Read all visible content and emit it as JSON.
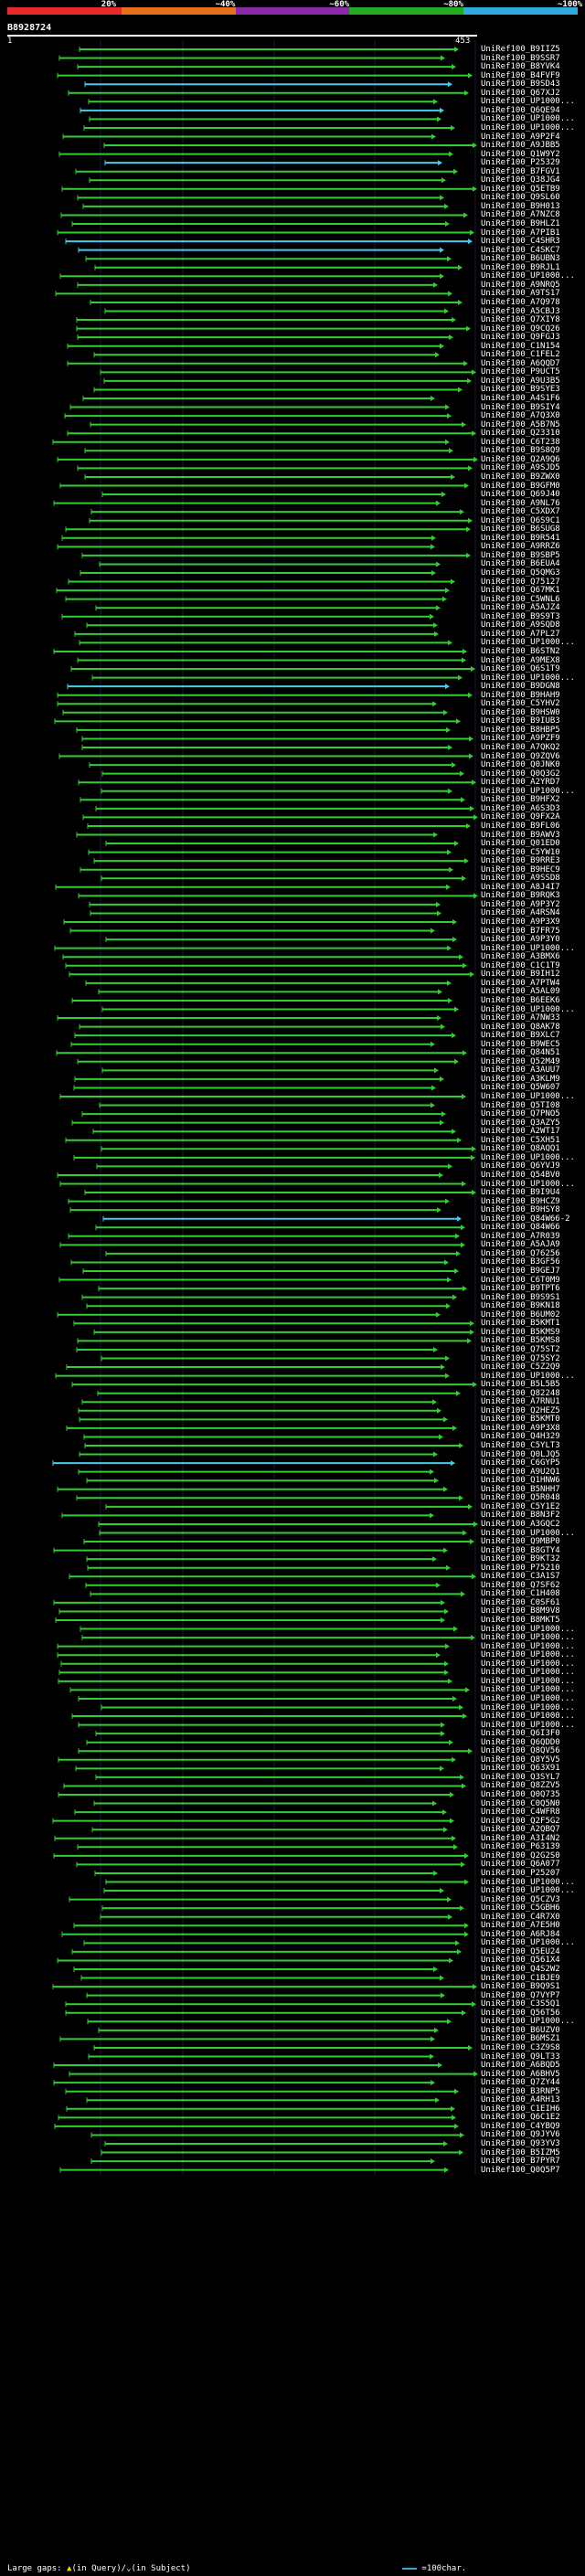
{
  "legend": {
    "percent_labels": [
      "20%",
      "~40%",
      "~60%",
      "~80%",
      "~100%"
    ],
    "colors": [
      "#e8282a",
      "#e8701a",
      "#8a2aa8",
      "#22aa22",
      "#33aadd"
    ]
  },
  "query": {
    "id": "B8928724",
    "start": "1",
    "end": "453"
  },
  "hits": [
    {
      "id": "UniRef100_B9IIZ5",
      "color": "#33cc33"
    },
    {
      "id": "UniRef100_B9SSR7",
      "color": "#33cc33"
    },
    {
      "id": "UniRef100_B8YVK4",
      "color": "#33cc33"
    },
    {
      "id": "UniRef100_B4FVF9",
      "color": "#33cc33"
    },
    {
      "id": "UniRef100_B9SD43",
      "color": "#44ccee"
    },
    {
      "id": "UniRef100_Q67XJ2",
      "color": "#33cc33"
    },
    {
      "id": "UniRef100_UP1000...",
      "color": "#33cc33"
    },
    {
      "id": "UniRef100_Q6QE94",
      "color": "#44ccee"
    },
    {
      "id": "UniRef100_UP1000...",
      "color": "#33cc33"
    },
    {
      "id": "UniRef100_UP1000...",
      "color": "#33cc33"
    },
    {
      "id": "UniRef100_A9P2F4",
      "color": "#33cc33"
    },
    {
      "id": "UniRef100_A9JBB5",
      "color": "#33cc33"
    },
    {
      "id": "UniRef100_Q1W9Y2",
      "color": "#33cc33"
    },
    {
      "id": "UniRef100_P25329",
      "color": "#44ccee"
    },
    {
      "id": "UniRef100_B7FGV1",
      "color": "#33cc33"
    },
    {
      "id": "UniRef100_Q38JG4",
      "color": "#33cc33"
    },
    {
      "id": "UniRef100_Q5ETB9",
      "color": "#33cc33"
    },
    {
      "id": "UniRef100_Q9SL60",
      "color": "#33cc33"
    },
    {
      "id": "UniRef100_B9H013",
      "color": "#33cc33"
    },
    {
      "id": "UniRef100_A7NZC8",
      "color": "#33cc33"
    },
    {
      "id": "UniRef100_B9HLZ1",
      "color": "#33cc33"
    },
    {
      "id": "UniRef100_A7PIB1",
      "color": "#33cc33"
    },
    {
      "id": "UniRef100_C4SHR3",
      "color": "#44ccee"
    },
    {
      "id": "UniRef100_C4SKC7",
      "color": "#44ccee"
    },
    {
      "id": "UniRef100_B6UBN3",
      "color": "#33cc33"
    },
    {
      "id": "UniRef100_B9RJL1",
      "color": "#33cc33"
    },
    {
      "id": "UniRef100_UP1000...",
      "color": "#33cc33"
    },
    {
      "id": "UniRef100_A9NRQ5",
      "color": "#33cc33"
    },
    {
      "id": "UniRef100_A9TS17",
      "color": "#33cc33"
    },
    {
      "id": "UniRef100_A7Q978",
      "color": "#33cc33"
    },
    {
      "id": "UniRef100_A5CBJ3",
      "color": "#33cc33"
    },
    {
      "id": "UniRef100_Q7XIY8",
      "color": "#33cc33"
    },
    {
      "id": "UniRef100_Q9CQ26",
      "color": "#33cc33"
    },
    {
      "id": "UniRef100_Q9FGJ3",
      "color": "#33cc33"
    },
    {
      "id": "UniRef100_C1N154",
      "color": "#33cc33"
    },
    {
      "id": "UniRef100_C1FEL2",
      "color": "#33cc33"
    },
    {
      "id": "UniRef100_A6QQD7",
      "color": "#33cc33"
    },
    {
      "id": "UniRef100_P9UCT5",
      "color": "#33cc33"
    },
    {
      "id": "UniRef100_A9U3B5",
      "color": "#33cc33"
    },
    {
      "id": "UniRef100_B9SYE3",
      "color": "#33cc33"
    },
    {
      "id": "UniRef100_A4S1F6",
      "color": "#33cc33"
    },
    {
      "id": "UniRef100_B9SIY4",
      "color": "#33cc33"
    },
    {
      "id": "UniRef100_A7Q3X0",
      "color": "#33cc33"
    },
    {
      "id": "UniRef100_A5B7N5",
      "color": "#33cc33"
    },
    {
      "id": "UniRef100_Q23310",
      "color": "#33cc33"
    },
    {
      "id": "UniRef100_C6T238",
      "color": "#33cc33"
    },
    {
      "id": "UniRef100_B9S8Q9",
      "color": "#33cc33"
    },
    {
      "id": "UniRef100_Q2A9Q6",
      "color": "#33cc33"
    },
    {
      "id": "UniRef100_A9SJD5",
      "color": "#33cc33"
    },
    {
      "id": "UniRef100_B9ZWX0",
      "color": "#33cc33"
    },
    {
      "id": "UniRef100_B9GFM0",
      "color": "#33cc33"
    },
    {
      "id": "UniRef100_Q69J40",
      "color": "#33cc33"
    },
    {
      "id": "UniRef100_A9NL76",
      "color": "#33cc33"
    },
    {
      "id": "UniRef100_C5XDX7",
      "color": "#33cc33"
    },
    {
      "id": "UniRef100_Q6S9C1",
      "color": "#33cc33"
    },
    {
      "id": "UniRef100_B6SUG8",
      "color": "#33cc33"
    },
    {
      "id": "UniRef100_B9R541",
      "color": "#33cc33"
    },
    {
      "id": "UniRef100_A9RRZ6",
      "color": "#33cc33"
    },
    {
      "id": "UniRef100_B9SBP5",
      "color": "#33cc33"
    },
    {
      "id": "UniRef100_B6EUA4",
      "color": "#33cc33"
    },
    {
      "id": "UniRef100_Q5QMG3",
      "color": "#33cc33"
    },
    {
      "id": "UniRef100_Q75127",
      "color": "#33cc33"
    },
    {
      "id": "UniRef100_Q67MK1",
      "color": "#33cc33"
    },
    {
      "id": "UniRef100_C5WNL6",
      "color": "#33cc33"
    },
    {
      "id": "UniRef100_A5AJZ4",
      "color": "#33cc33"
    },
    {
      "id": "UniRef100_B9S9T3",
      "color": "#33cc33"
    },
    {
      "id": "UniRef100_A9SQD8",
      "color": "#33cc33"
    },
    {
      "id": "UniRef100_A7PL27",
      "color": "#33cc33"
    },
    {
      "id": "UniRef100_UP1000...",
      "color": "#33cc33"
    },
    {
      "id": "UniRef100_B6STN2",
      "color": "#33cc33"
    },
    {
      "id": "UniRef100_A9MEX8",
      "color": "#33cc33"
    },
    {
      "id": "UniRef100_Q6S1T9",
      "color": "#33cc33"
    },
    {
      "id": "UniRef100_UP1000...",
      "color": "#33cc33"
    },
    {
      "id": "UniRef100_B9DGN8",
      "color": "#44ccee"
    },
    {
      "id": "UniRef100_B9HAH9",
      "color": "#33cc33"
    },
    {
      "id": "UniRef100_C5YHV2",
      "color": "#33cc33"
    },
    {
      "id": "UniRef100_B9HSW0",
      "color": "#33cc33"
    },
    {
      "id": "UniRef100_B9IUB3",
      "color": "#33cc33"
    },
    {
      "id": "UniRef100_B8HBP5",
      "color": "#33cc33"
    },
    {
      "id": "UniRef100_A9PZF9",
      "color": "#33cc33"
    },
    {
      "id": "UniRef100_A7QKQ2",
      "color": "#33cc33"
    },
    {
      "id": "UniRef100_Q9ZQV6",
      "color": "#33cc33"
    },
    {
      "id": "UniRef100_Q0JNK0",
      "color": "#33cc33"
    },
    {
      "id": "UniRef100_Q0Q3G2",
      "color": "#33cc33"
    },
    {
      "id": "UniRef100_A2YRD7",
      "color": "#33cc33"
    },
    {
      "id": "UniRef100_UP1000...",
      "color": "#33cc33"
    },
    {
      "id": "UniRef100_B9HFX2",
      "color": "#33cc33"
    },
    {
      "id": "UniRef100_A6S3D3",
      "color": "#33cc33"
    },
    {
      "id": "UniRef100_Q9FX2A",
      "color": "#33cc33"
    },
    {
      "id": "UniRef100_B9FL06",
      "color": "#33cc33"
    },
    {
      "id": "UniRef100_B9AWV3",
      "color": "#33cc33"
    },
    {
      "id": "UniRef100_Q01ED0",
      "color": "#33cc33"
    },
    {
      "id": "UniRef100_C5YW10",
      "color": "#33cc33"
    },
    {
      "id": "UniRef100_B9RRE3",
      "color": "#33cc33"
    },
    {
      "id": "UniRef100_B9HEC9",
      "color": "#33cc33"
    },
    {
      "id": "UniRef100_A9SSD8",
      "color": "#33cc33"
    },
    {
      "id": "UniRef100_A8J4I7",
      "color": "#33cc33"
    },
    {
      "id": "UniRef100_B9RQK3",
      "color": "#33cc33"
    },
    {
      "id": "UniRef100_A9P3Y2",
      "color": "#33cc33"
    },
    {
      "id": "UniRef100_A4RSN4",
      "color": "#33cc33"
    },
    {
      "id": "UniRef100_A9P3X9",
      "color": "#33cc33"
    },
    {
      "id": "UniRef100_B7FR75",
      "color": "#33cc33"
    },
    {
      "id": "UniRef100_A9P3Y0",
      "color": "#33cc33"
    },
    {
      "id": "UniRef100_UP1000...",
      "color": "#33cc33"
    },
    {
      "id": "UniRef100_A3BMX6",
      "color": "#33cc33"
    },
    {
      "id": "UniRef100_C1C1T9",
      "color": "#33cc33"
    },
    {
      "id": "UniRef100_B9IH12",
      "color": "#33cc33"
    },
    {
      "id": "UniRef100_A7PTW4",
      "color": "#33cc33"
    },
    {
      "id": "UniRef100_A5AL09",
      "color": "#33cc33"
    },
    {
      "id": "UniRef100_B6EEK6",
      "color": "#33cc33"
    },
    {
      "id": "UniRef100_UP1000...",
      "color": "#33cc33"
    },
    {
      "id": "UniRef100_A7NW33",
      "color": "#33cc33"
    },
    {
      "id": "UniRef100_Q8AK78",
      "color": "#33cc33"
    },
    {
      "id": "UniRef100_B9XLC7",
      "color": "#33cc33"
    },
    {
      "id": "UniRef100_B9WEC5",
      "color": "#33cc33"
    },
    {
      "id": "UniRef100_Q84N51",
      "color": "#33cc33"
    },
    {
      "id": "UniRef100_Q52M49",
      "color": "#33cc33"
    },
    {
      "id": "UniRef100_A3AUU7",
      "color": "#33cc33"
    },
    {
      "id": "UniRef100_A3KLM9",
      "color": "#33cc33"
    },
    {
      "id": "UniRef100_Q5W607",
      "color": "#33cc33"
    },
    {
      "id": "UniRef100_UP1000...",
      "color": "#33cc33"
    },
    {
      "id": "UniRef100_Q5TI08",
      "color": "#33cc33"
    },
    {
      "id": "UniRef100_Q7PNO5",
      "color": "#33cc33"
    },
    {
      "id": "UniRef100_Q3AZY5",
      "color": "#33cc33"
    },
    {
      "id": "UniRef100_A2WT17",
      "color": "#33cc33"
    },
    {
      "id": "UniRef100_C5XH51",
      "color": "#33cc33"
    },
    {
      "id": "UniRef100_Q8AQQ1",
      "color": "#33cc33"
    },
    {
      "id": "UniRef100_UP1000...",
      "color": "#33cc33"
    },
    {
      "id": "UniRef100_Q6YVJ9",
      "color": "#33cc33"
    },
    {
      "id": "UniRef100_Q54BV0",
      "color": "#33cc33"
    },
    {
      "id": "UniRef100_UP1000...",
      "color": "#33cc33"
    },
    {
      "id": "UniRef100_B9I9U4",
      "color": "#33cc33"
    },
    {
      "id": "UniRef100_B9HCZ9",
      "color": "#33cc33"
    },
    {
      "id": "UniRef100_B9HSY8",
      "color": "#33cc33"
    },
    {
      "id": "UniRef100_Q84W66-2",
      "color": "#44ccee"
    },
    {
      "id": "UniRef100_Q84W66",
      "color": "#33cc33"
    },
    {
      "id": "UniRef100_A7R039",
      "color": "#33cc33"
    },
    {
      "id": "UniRef100_A5AJA9",
      "color": "#33cc33"
    },
    {
      "id": "UniRef100_Q76256",
      "color": "#33cc33"
    },
    {
      "id": "UniRef100_B3GF56",
      "color": "#33cc33"
    },
    {
      "id": "UniRef100_B9GEJ7",
      "color": "#33cc33"
    },
    {
      "id": "UniRef100_C6T0M9",
      "color": "#33cc33"
    },
    {
      "id": "UniRef100_B9TPT6",
      "color": "#33cc33"
    },
    {
      "id": "UniRef100_B9S9S1",
      "color": "#33cc33"
    },
    {
      "id": "UniRef100_B9KN18",
      "color": "#33cc33"
    },
    {
      "id": "UniRef100_B6UM02",
      "color": "#33cc33"
    },
    {
      "id": "UniRef100_B5KMT1",
      "color": "#33cc33"
    },
    {
      "id": "UniRef100_B5KMS9",
      "color": "#33cc33"
    },
    {
      "id": "UniRef100_B5KMS8",
      "color": "#33cc33"
    },
    {
      "id": "UniRef100_Q75ST2",
      "color": "#33cc33"
    },
    {
      "id": "UniRef100_Q75SY2",
      "color": "#33cc33"
    },
    {
      "id": "UniRef100_C5Z2Q9",
      "color": "#33cc33"
    },
    {
      "id": "UniRef100_UP1000...",
      "color": "#33cc33"
    },
    {
      "id": "UniRef100_B5L5B5",
      "color": "#33cc33"
    },
    {
      "id": "UniRef100_Q82248",
      "color": "#33cc33"
    },
    {
      "id": "UniRef100_A7RNU1",
      "color": "#33cc33"
    },
    {
      "id": "UniRef100_Q2HEZ5",
      "color": "#33cc33"
    },
    {
      "id": "UniRef100_B5KMT0",
      "color": "#33cc33"
    },
    {
      "id": "UniRef100_A9P3X8",
      "color": "#33cc33"
    },
    {
      "id": "UniRef100_Q4H329",
      "color": "#33cc33"
    },
    {
      "id": "UniRef100_C5YLT3",
      "color": "#33cc33"
    },
    {
      "id": "UniRef100_Q0LJQ5",
      "color": "#33cc33"
    },
    {
      "id": "UniRef100_C6GYP5",
      "color": "#44ccee"
    },
    {
      "id": "UniRef100_A9U2Q1",
      "color": "#33cc33"
    },
    {
      "id": "UniRef100_Q1HNW6",
      "color": "#33cc33"
    },
    {
      "id": "UniRef100_B5NHH7",
      "color": "#33cc33"
    },
    {
      "id": "UniRef100_Q5R048",
      "color": "#33cc33"
    },
    {
      "id": "UniRef100_C5Y1E2",
      "color": "#33cc33"
    },
    {
      "id": "UniRef100_B8N3F2",
      "color": "#33cc33"
    },
    {
      "id": "UniRef100_A3GQC2",
      "color": "#33cc33"
    },
    {
      "id": "UniRef100_UP1000...",
      "color": "#33cc33"
    },
    {
      "id": "UniRef100_Q9MBP0",
      "color": "#33cc33"
    },
    {
      "id": "UniRef100_B8GTY4",
      "color": "#33cc33"
    },
    {
      "id": "UniRef100_B9KT32",
      "color": "#33cc33"
    },
    {
      "id": "UniRef100_P75210",
      "color": "#33cc33"
    },
    {
      "id": "UniRef100_C3A1S7",
      "color": "#33cc33"
    },
    {
      "id": "UniRef100_Q7SF62",
      "color": "#33cc33"
    },
    {
      "id": "UniRef100_C1H408",
      "color": "#33cc33"
    },
    {
      "id": "UniRef100_C0SF61",
      "color": "#33cc33"
    },
    {
      "id": "UniRef100_B8M9V8",
      "color": "#33cc33"
    },
    {
      "id": "UniRef100_B8MKT5",
      "color": "#33cc33"
    },
    {
      "id": "UniRef100_UP1000...",
      "color": "#33cc33"
    },
    {
      "id": "UniRef100_UP1000...",
      "color": "#33cc33"
    },
    {
      "id": "UniRef100_UP1000...",
      "color": "#33cc33"
    },
    {
      "id": "UniRef100_UP1000...",
      "color": "#33cc33"
    },
    {
      "id": "UniRef100_UP1000...",
      "color": "#33cc33"
    },
    {
      "id": "UniRef100_UP1000...",
      "color": "#33cc33"
    },
    {
      "id": "UniRef100_UP1000...",
      "color": "#33cc33"
    },
    {
      "id": "UniRef100_UP1000...",
      "color": "#33cc33"
    },
    {
      "id": "UniRef100_UP1000...",
      "color": "#33cc33"
    },
    {
      "id": "UniRef100_UP1000...",
      "color": "#33cc33"
    },
    {
      "id": "UniRef100_UP1000...",
      "color": "#33cc33"
    },
    {
      "id": "UniRef100_UP1000...",
      "color": "#33cc33"
    },
    {
      "id": "UniRef100_Q6I3F0",
      "color": "#33cc33"
    },
    {
      "id": "UniRef100_Q6QDD0",
      "color": "#33cc33"
    },
    {
      "id": "UniRef100_Q8QV56",
      "color": "#33cc33"
    },
    {
      "id": "UniRef100_Q8Y5V5",
      "color": "#33cc33"
    },
    {
      "id": "UniRef100_Q63X91",
      "color": "#33cc33"
    },
    {
      "id": "UniRef100_Q3SYL7",
      "color": "#33cc33"
    },
    {
      "id": "UniRef100_Q8ZZV5",
      "color": "#33cc33"
    },
    {
      "id": "UniRef100_Q0Q735",
      "color": "#33cc33"
    },
    {
      "id": "UniRef100_C0Q5N0",
      "color": "#33cc33"
    },
    {
      "id": "UniRef100_C4WFR8",
      "color": "#33cc33"
    },
    {
      "id": "UniRef100_Q2F5G2",
      "color": "#33cc33"
    },
    {
      "id": "UniRef100_A2QBQ7",
      "color": "#33cc33"
    },
    {
      "id": "UniRef100_A3I4N2",
      "color": "#33cc33"
    },
    {
      "id": "UniRef100_P63139",
      "color": "#33cc33"
    },
    {
      "id": "UniRef100_Q2G2S0",
      "color": "#33cc33"
    },
    {
      "id": "UniRef100_Q6A077",
      "color": "#33cc33"
    },
    {
      "id": "UniRef100_P25207",
      "color": "#33cc33"
    },
    {
      "id": "UniRef100_UP1000...",
      "color": "#33cc33"
    },
    {
      "id": "UniRef100_UP1000...",
      "color": "#33cc33"
    },
    {
      "id": "UniRef100_Q5CZV3",
      "color": "#33cc33"
    },
    {
      "id": "UniRef100_C5GBH6",
      "color": "#33cc33"
    },
    {
      "id": "UniRef100_C4R7X0",
      "color": "#33cc33"
    },
    {
      "id": "UniRef100_A7E5H0",
      "color": "#33cc33"
    },
    {
      "id": "UniRef100_A6RJ84",
      "color": "#33cc33"
    },
    {
      "id": "UniRef100_UP1000...",
      "color": "#33cc33"
    },
    {
      "id": "UniRef100_Q5EU24",
      "color": "#33cc33"
    },
    {
      "id": "UniRef100_Q561X4",
      "color": "#33cc33"
    },
    {
      "id": "UniRef100_Q4S2W2",
      "color": "#33cc33"
    },
    {
      "id": "UniRef100_C1BJE9",
      "color": "#33cc33"
    },
    {
      "id": "UniRef100_B9Q9S1",
      "color": "#33cc33"
    },
    {
      "id": "UniRef100_Q7VYP7",
      "color": "#33cc33"
    },
    {
      "id": "UniRef100_C3S5Q1",
      "color": "#33cc33"
    },
    {
      "id": "UniRef100_Q56T56",
      "color": "#33cc33"
    },
    {
      "id": "UniRef100_UP1000...",
      "color": "#33cc33"
    },
    {
      "id": "UniRef100_B6UZV0",
      "color": "#33cc33"
    },
    {
      "id": "UniRef100_B6MSZ1",
      "color": "#33cc33"
    },
    {
      "id": "UniRef100_C3Z9S8",
      "color": "#33cc33"
    },
    {
      "id": "UniRef100_Q9LT33",
      "color": "#33cc33"
    },
    {
      "id": "UniRef100_A6BQD5",
      "color": "#33cc33"
    },
    {
      "id": "UniRef100_A6BHV5",
      "color": "#33cc33"
    },
    {
      "id": "UniRef100_Q7ZY44",
      "color": "#33cc33"
    },
    {
      "id": "UniRef100_B3RNP5",
      "color": "#33cc33"
    },
    {
      "id": "UniRef100_A4RH13",
      "color": "#33cc33"
    },
    {
      "id": "UniRef100_C1EIH6",
      "color": "#33cc33"
    },
    {
      "id": "UniRef100_Q6C1E2",
      "color": "#33cc33"
    },
    {
      "id": "UniRef100_C4YBQ9",
      "color": "#33cc33"
    },
    {
      "id": "UniRef100_Q9JYV6",
      "color": "#33cc33"
    },
    {
      "id": "UniRef100_Q93YV3",
      "color": "#33cc33"
    },
    {
      "id": "UniRef100_B5IZM5",
      "color": "#33cc33"
    },
    {
      "id": "UniRef100_B7PYR7",
      "color": "#33cc33"
    },
    {
      "id": "UniRef100_Q0Q5P7",
      "color": "#33cc33"
    }
  ],
  "footer": {
    "large_gaps_label": "Large gaps:",
    "gaps_in_query": "(in Query)/",
    "gaps_in_subject": "(in Subject)",
    "scale_label": "=100char."
  }
}
